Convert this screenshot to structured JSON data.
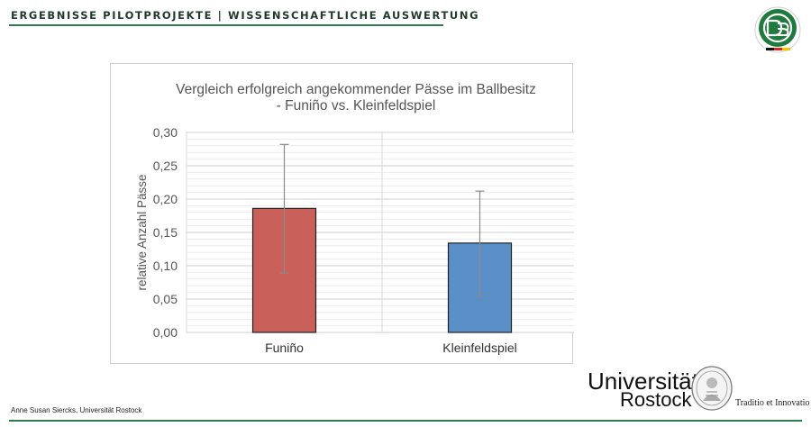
{
  "header": {
    "title": "ERGEBNISSE PILOTPROJEKTE | WISSENSCHAFTLICHE AUSWERTUNG"
  },
  "footer": {
    "author": "Anne Susan Siercks, Universität Rostock"
  },
  "university": {
    "name": "Universität",
    "city": "Rostock",
    "motto": "Traditio et Innovatio"
  },
  "colors": {
    "accent_green": "#2f7d4f",
    "bar_funino": "#c9605a",
    "bar_kleinfeld": "#5b8fc8"
  },
  "icons": {
    "top_right": "dfb-logo-icon",
    "bottom_right": "university-seal-icon"
  },
  "chart_data": {
    "type": "bar",
    "title": "Vergleich erfolgreich angekommender Pässe im Ballbesitz",
    "subtitle": "- Funiño vs. Kleinfeldspiel",
    "xlabel": "",
    "ylabel": "relative Anzahl Pässe",
    "ylim": [
      0,
      0.3
    ],
    "yticks": [
      "0,00",
      "0,05",
      "0,10",
      "0,15",
      "0,20",
      "0,25",
      "0,30"
    ],
    "categories": [
      "Funiño",
      "Kleinfeldspiel"
    ],
    "values": [
      0.186,
      0.134
    ],
    "error_low": [
      0.089,
      0.054
    ],
    "error_high": [
      0.282,
      0.212
    ],
    "bar_colors": [
      "#c9605a",
      "#5b8fc8"
    ],
    "grid": true,
    "legend": "none"
  }
}
